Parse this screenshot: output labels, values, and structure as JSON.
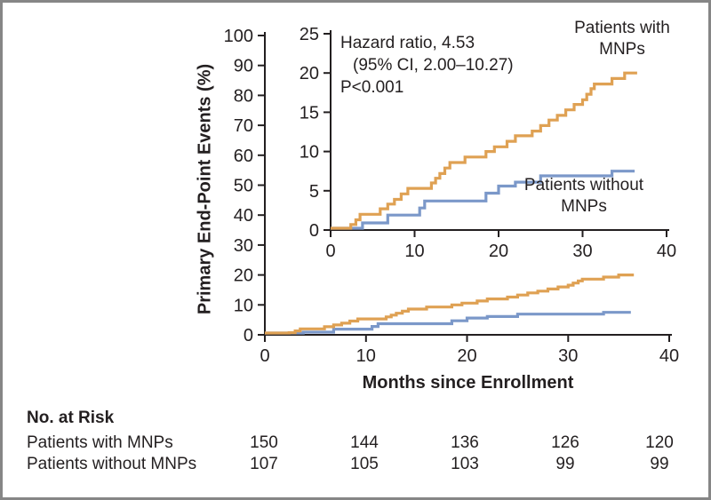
{
  "figure": {
    "background": "#ffffff",
    "border_color": "#868686",
    "axis_color": "#231f20"
  },
  "chart_data": {
    "type": "line",
    "subtype": "kaplan-meier-step-cumulative-incidence",
    "title": "",
    "xlabel": "Months since Enrollment",
    "ylabel": "Primary End-Point Events (%)",
    "grid": false,
    "annotation": {
      "line1": "Hazard ratio, 4.53",
      "line2": "(95% CI, 2.00–10.27)",
      "line3": "P<0.001"
    },
    "main_axis": {
      "xlim": [
        0,
        40
      ],
      "ylim": [
        0,
        100
      ],
      "xticks": [
        0,
        10,
        20,
        30,
        40
      ],
      "yticks": [
        0,
        10,
        20,
        30,
        40,
        50,
        60,
        70,
        80,
        90,
        100
      ]
    },
    "inset_axis": {
      "xlim": [
        0,
        40
      ],
      "ylim": [
        0,
        25
      ],
      "xticks": [
        0,
        10,
        20,
        30,
        40
      ],
      "yticks": [
        0,
        5,
        10,
        15,
        20,
        25
      ]
    },
    "series": [
      {
        "name": "Patients with MNPs",
        "color": "#dfa153",
        "end_time": 36.5,
        "final_value_pct": 20.0,
        "events": [
          [
            2.4,
            0.7
          ],
          [
            3.0,
            1.3
          ],
          [
            3.5,
            2.0
          ],
          [
            5.9,
            2.7
          ],
          [
            6.8,
            3.3
          ],
          [
            7.6,
            3.9
          ],
          [
            8.4,
            4.6
          ],
          [
            9.2,
            5.3
          ],
          [
            12.0,
            6.0
          ],
          [
            12.5,
            6.6
          ],
          [
            13.0,
            7.2
          ],
          [
            13.6,
            7.9
          ],
          [
            14.2,
            8.6
          ],
          [
            16.0,
            9.3
          ],
          [
            18.5,
            10.0
          ],
          [
            19.5,
            10.6
          ],
          [
            21.0,
            11.3
          ],
          [
            22.0,
            12.0
          ],
          [
            24.0,
            12.6
          ],
          [
            25.0,
            13.3
          ],
          [
            26.0,
            14.0
          ],
          [
            27.0,
            14.6
          ],
          [
            28.0,
            15.3
          ],
          [
            29.0,
            16.0
          ],
          [
            30.0,
            16.6
          ],
          [
            30.5,
            17.3
          ],
          [
            31.0,
            18.0
          ],
          [
            31.4,
            18.6
          ],
          [
            33.5,
            19.3
          ],
          [
            35.0,
            20.0
          ]
        ]
      },
      {
        "name": "Patients without MNPs",
        "color": "#7b98c9",
        "end_time": 36.2,
        "final_value_pct": 7.5,
        "events": [
          [
            3.8,
            0.9
          ],
          [
            6.8,
            1.9
          ],
          [
            10.6,
            2.8
          ],
          [
            11.2,
            3.7
          ],
          [
            18.5,
            4.7
          ],
          [
            20.0,
            5.6
          ],
          [
            22.0,
            6.1
          ],
          [
            25.0,
            6.9
          ],
          [
            33.5,
            7.5
          ]
        ]
      }
    ]
  },
  "risk_table": {
    "title": "No. at Risk",
    "timepoints": [
      0,
      10,
      20,
      30,
      40
    ],
    "rows": [
      {
        "label": "Patients with MNPs",
        "counts": [
          "150",
          "144",
          "136",
          "126",
          "120"
        ]
      },
      {
        "label": "Patients without MNPs",
        "counts": [
          "107",
          "105",
          "103",
          "99",
          "99"
        ]
      }
    ]
  }
}
